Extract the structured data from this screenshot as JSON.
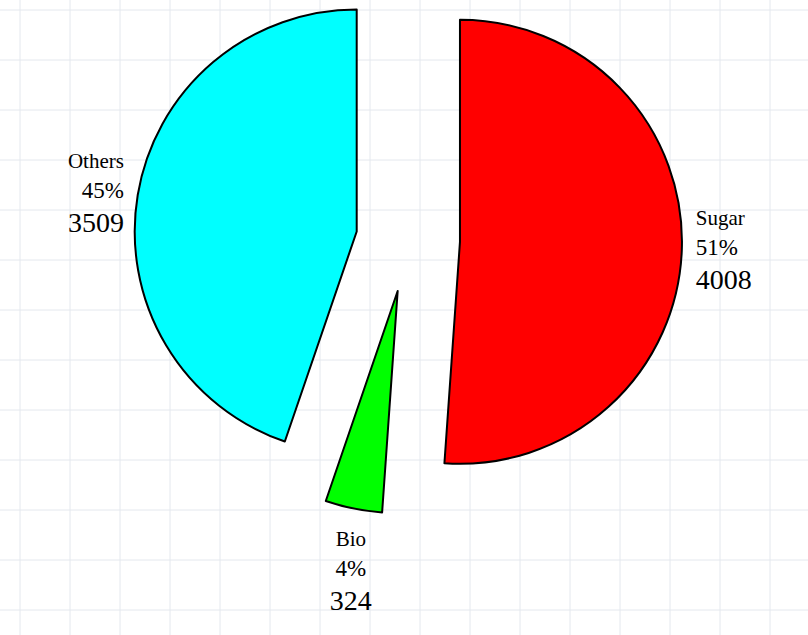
{
  "chart_data": {
    "type": "pie",
    "categories": [
      "Sugar",
      "Bio",
      "Others"
    ],
    "values": [
      4008,
      324,
      3509
    ],
    "shares": [
      51,
      4,
      45
    ],
    "share_labels": [
      "51%",
      "4%",
      "45%"
    ],
    "colors": [
      "#ff0000",
      "#00ff00",
      "#00ffff"
    ],
    "data_labels": true
  }
}
